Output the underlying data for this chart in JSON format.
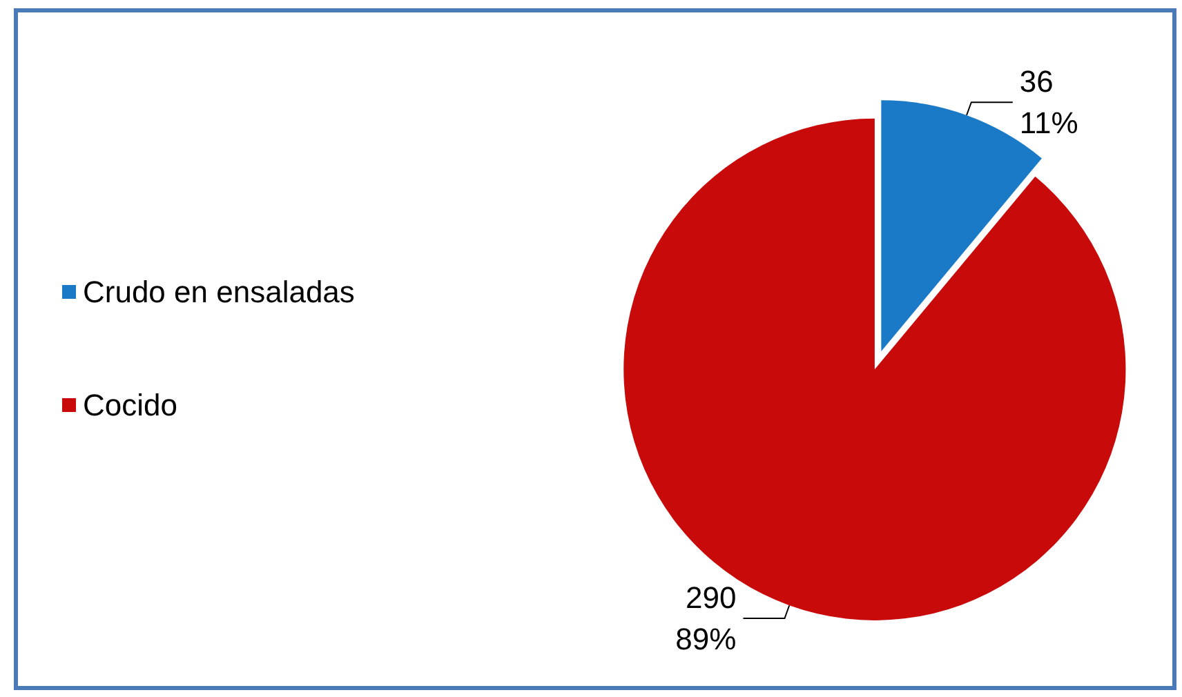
{
  "chart_data": {
    "type": "pie",
    "categories": [
      "Crudo en ensaladas",
      "Cocido"
    ],
    "values": [
      36,
      290
    ],
    "colors": [
      "#1a7ac8",
      "#c80a0a"
    ],
    "value_labels": [
      "36\n11%",
      "290\n89%"
    ],
    "legend": "left"
  }
}
